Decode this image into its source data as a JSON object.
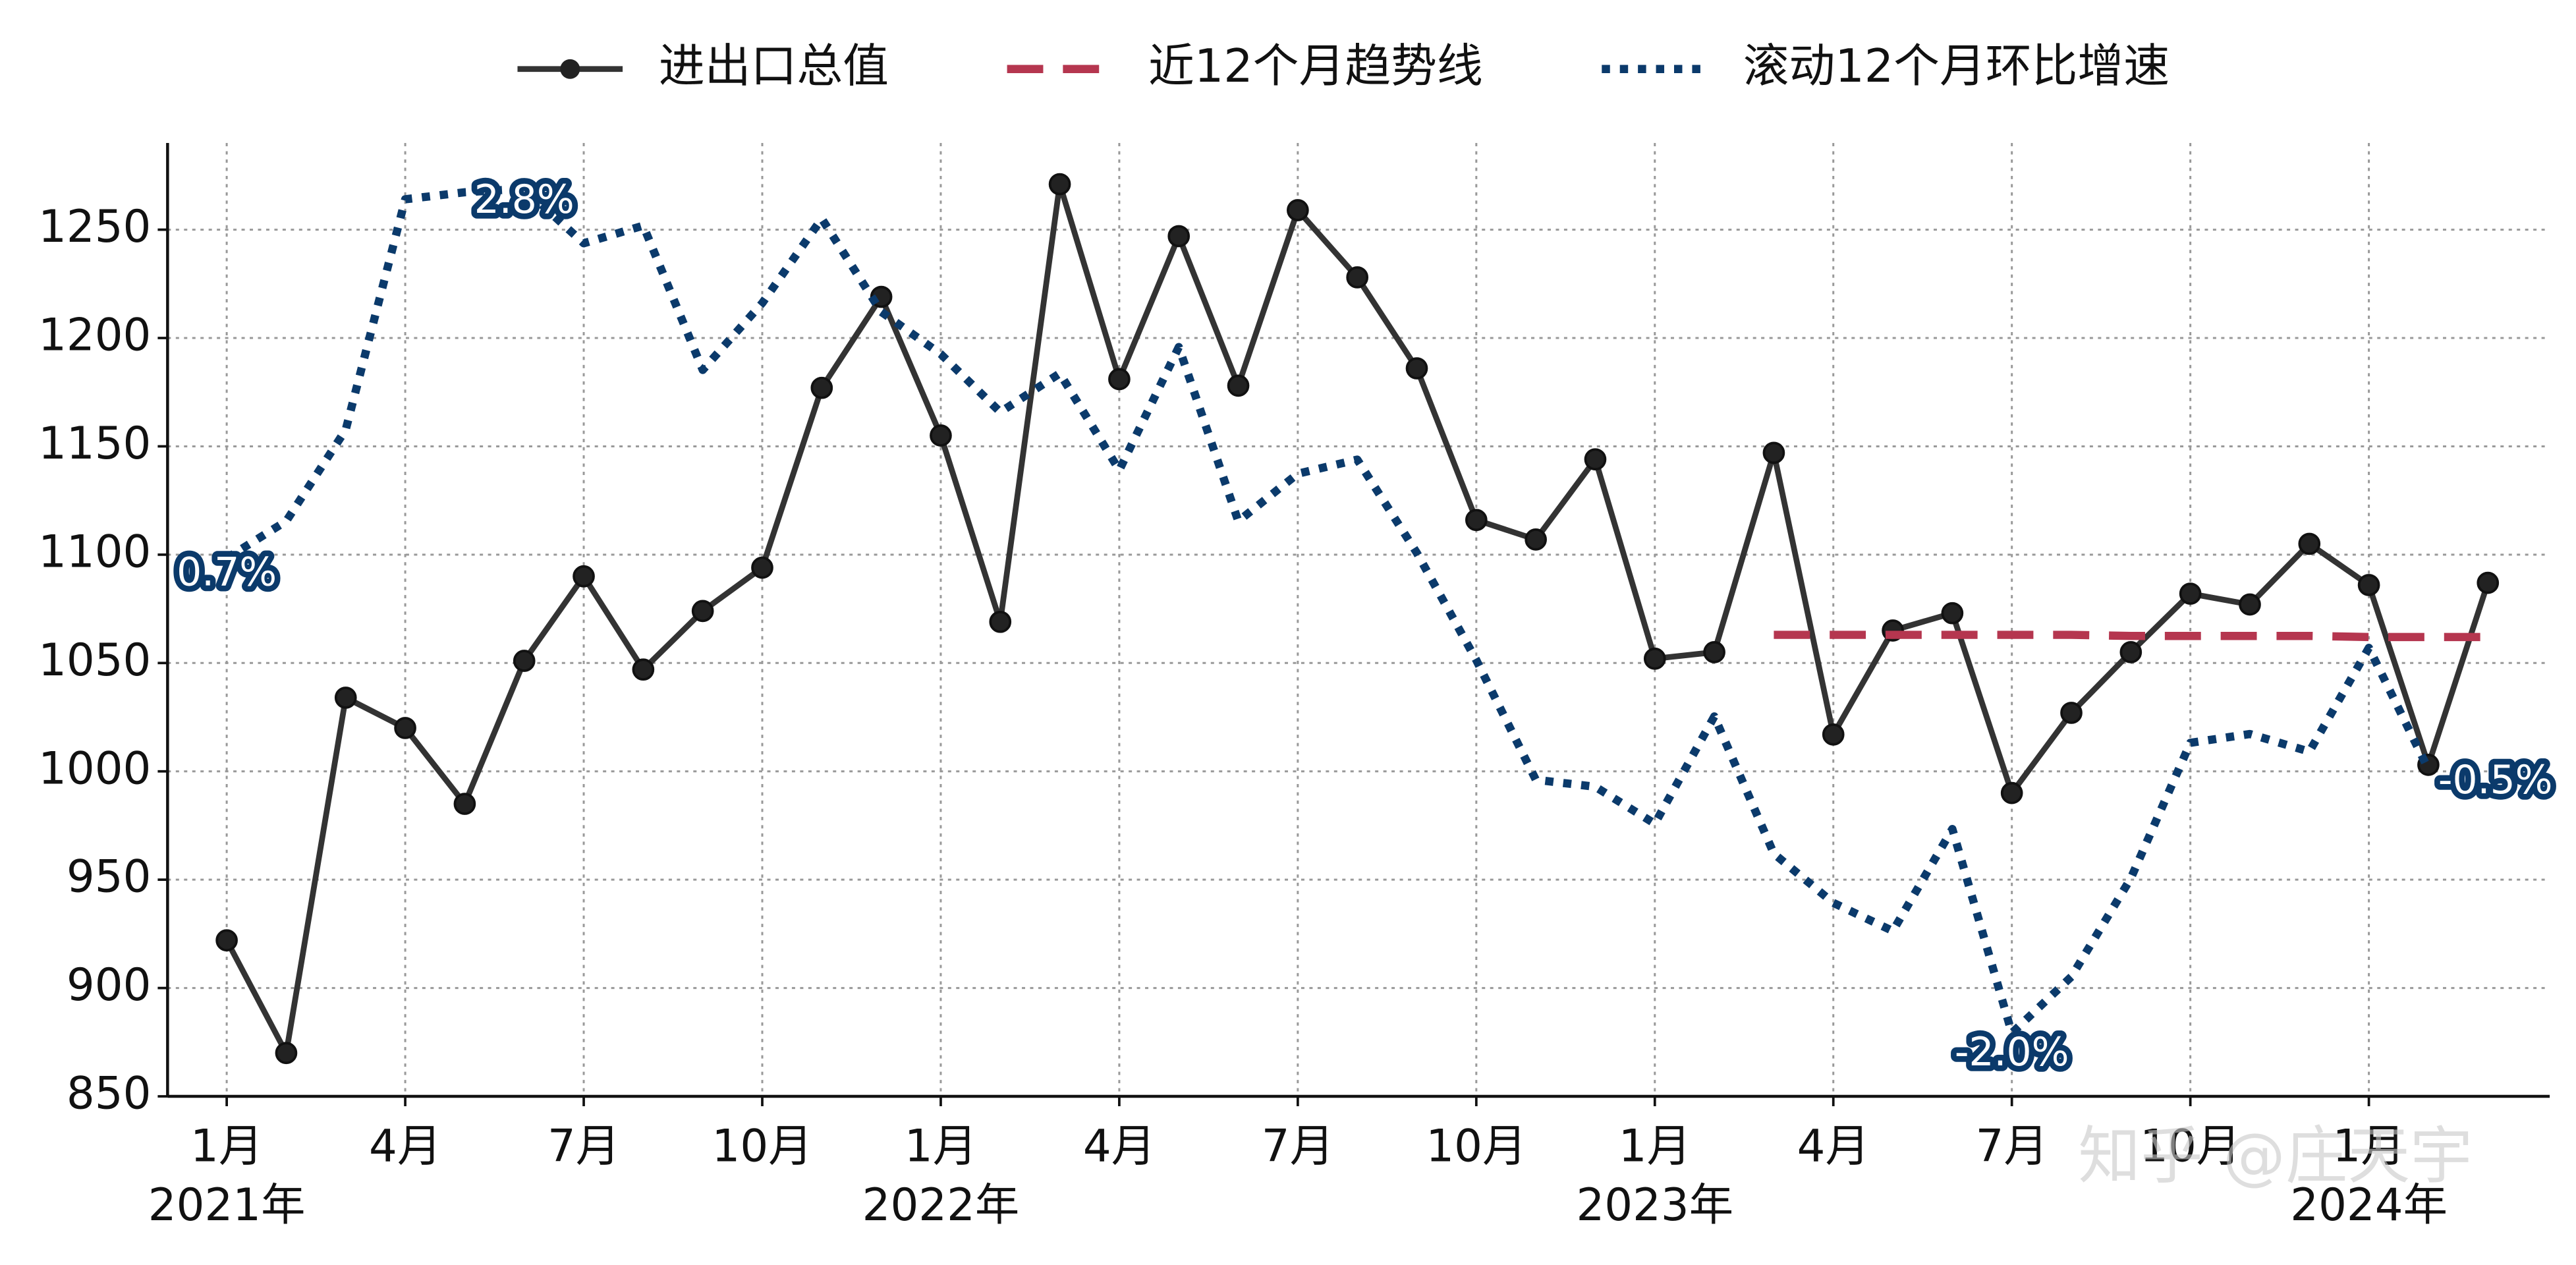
{
  "chart_data": {
    "type": "line",
    "legend": "top",
    "categories": [
      "1月",
      null,
      null,
      "4月",
      null,
      null,
      "7月",
      null,
      null,
      "10月",
      null,
      null,
      "1月",
      null,
      null,
      "4月",
      null,
      null,
      "7月",
      null,
      null,
      "10月",
      null,
      null,
      "1月",
      null,
      null,
      "4月",
      null,
      null,
      "7月",
      null,
      null,
      "10月",
      null,
      null,
      "1月",
      null,
      null
    ],
    "years": [
      "2021年",
      "2022年",
      "2023年",
      "2024年"
    ],
    "ylim": [
      850,
      1290
    ],
    "yticks": [
      850,
      900,
      950,
      1000,
      1050,
      1100,
      1150,
      1200,
      1250
    ],
    "y2lim": [
      -2.36,
      3.06
    ],
    "grid": true,
    "watermark": "知乎 @庄天宇",
    "series": [
      {
        "name": "进出口总值",
        "color": "#333333",
        "style": "solid-marker",
        "values": [
          922,
          870,
          1034,
          1020,
          985,
          1051,
          1090,
          1047,
          1074,
          1094,
          1177,
          1219,
          1155,
          1069,
          1271,
          1181,
          1247,
          1178,
          1259,
          1228,
          1186,
          1116,
          1107,
          1144,
          1052,
          1055,
          1147,
          1017,
          1065,
          1073,
          990,
          1027,
          1055,
          1082,
          1077,
          1105,
          1086,
          1003,
          1087
        ]
      },
      {
        "name": "近12个月趋势线",
        "color": "#b5364f",
        "style": "dashed",
        "values": [
          null,
          null,
          null,
          null,
          null,
          null,
          null,
          null,
          null,
          null,
          null,
          null,
          null,
          null,
          null,
          null,
          null,
          null,
          null,
          null,
          null,
          null,
          null,
          null,
          null,
          null,
          1063,
          1063,
          1063,
          1063,
          1063,
          1063,
          1062.5,
          1062.5,
          1062.5,
          1062.5,
          1062,
          1062,
          1062
        ]
      },
      {
        "name": "滚动12个月环比增速",
        "color": "#0b3a6b",
        "style": "dotted",
        "axis": "y2",
        "values": [
          0.7,
          0.91,
          1.43,
          2.74,
          2.78,
          2.8,
          2.49,
          2.59,
          1.77,
          2.15,
          2.63,
          2.1,
          1.86,
          1.53,
          1.75,
          1.2,
          1.9,
          0.91,
          1.18,
          1.26,
          0.73,
          0.12,
          -0.56,
          -0.6,
          -0.81,
          -0.2,
          -0.98,
          -1.26,
          -1.42,
          -0.84,
          -2.0,
          -1.68,
          -1.12,
          -0.35,
          -0.3,
          -0.4,
          0.19,
          -0.5,
          null
        ],
        "value_labels": [
          "0.7%",
          null,
          null,
          null,
          null,
          "2.8%",
          null,
          null,
          null,
          null,
          null,
          null,
          null,
          null,
          null,
          null,
          null,
          null,
          null,
          null,
          null,
          null,
          null,
          null,
          null,
          null,
          null,
          null,
          null,
          null,
          "-2.0%",
          null,
          null,
          null,
          null,
          null,
          null,
          "-0.5%",
          null
        ]
      }
    ]
  }
}
